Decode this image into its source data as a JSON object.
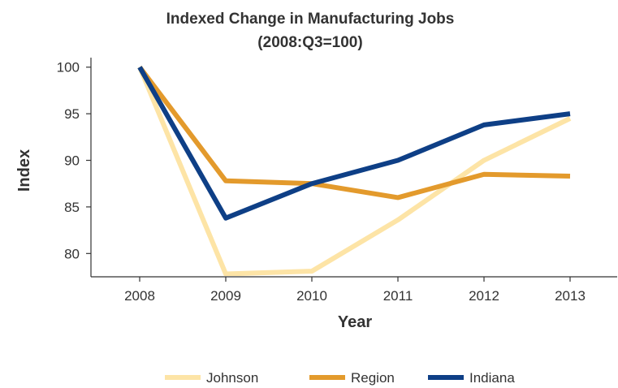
{
  "chart_data": {
    "type": "line",
    "title": "Indexed Change in Manufacturing Jobs",
    "subtitle": "(2008:Q3=100)",
    "xlabel": "Year",
    "ylabel": "Index",
    "categories": [
      "2008",
      "2009",
      "2010",
      "2011",
      "2012",
      "2013"
    ],
    "y_ticks": [
      80,
      85,
      90,
      95,
      100
    ],
    "ylim": [
      77.5,
      100.5
    ],
    "grid": false,
    "legend_position": "bottom",
    "series": [
      {
        "name": "Johnson",
        "color": "#fde4a6",
        "values": [
          100,
          77.8,
          78.1,
          83.6,
          90.0,
          94.5
        ]
      },
      {
        "name": "Region",
        "color": "#e39a2c",
        "values": [
          100,
          87.8,
          87.5,
          86.0,
          88.5,
          88.3
        ]
      },
      {
        "name": "Indiana",
        "color": "#0e3f86",
        "values": [
          100,
          83.8,
          87.5,
          90.0,
          93.8,
          95.0
        ]
      }
    ]
  }
}
